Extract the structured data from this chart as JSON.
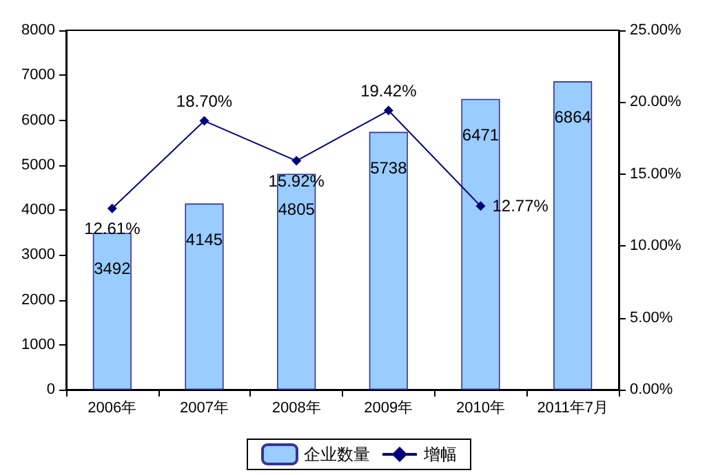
{
  "chart_data": {
    "type": "bar",
    "categories": [
      "2006年",
      "2007年",
      "2008年",
      "2009年",
      "2010年",
      "2011年7月"
    ],
    "series": [
      {
        "name": "企业数量",
        "color": "#99ccff",
        "values": [
          3492,
          4145,
          4805,
          5738,
          6471,
          6864
        ],
        "value_labels": [
          "3492",
          "4145",
          "4805",
          "5738",
          "6471",
          "6864"
        ]
      },
      {
        "name": "增幅",
        "type": "line",
        "axis": "y2",
        "color": "#000080",
        "values": [
          12.61,
          18.7,
          15.92,
          19.42,
          12.77,
          null
        ],
        "value_labels": [
          "12.61%",
          "18.70%",
          "15.92%",
          "19.42%",
          "12.77%",
          null
        ]
      }
    ],
    "ylim": [
      0,
      8000
    ],
    "yticks": [
      0,
      1000,
      2000,
      3000,
      4000,
      5000,
      6000,
      7000,
      8000
    ],
    "y2lim": [
      0,
      25
    ],
    "y2ticks": [
      {
        "value": 0,
        "label": "0.00%"
      },
      {
        "value": 5,
        "label": "5.00%"
      },
      {
        "value": 10,
        "label": "10.00%"
      },
      {
        "value": 15,
        "label": "15.00%"
      },
      {
        "value": 20,
        "label": "20.00%"
      },
      {
        "value": 25,
        "label": "25.00%"
      }
    ],
    "legend": "bottom",
    "grid": false,
    "marker": "diamond"
  }
}
